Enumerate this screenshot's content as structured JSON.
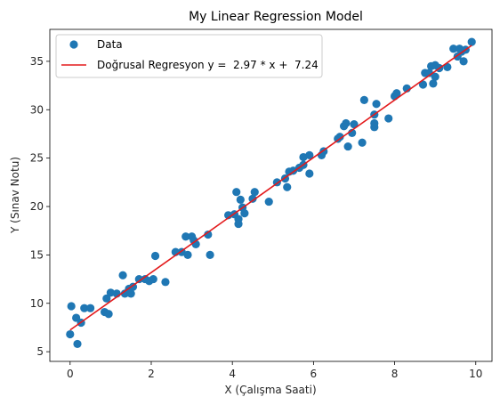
{
  "chart_data": {
    "type": "scatter",
    "title": "My Linear Regression Model",
    "xlabel": "X (Çalışma Saati)",
    "ylabel": "Y (Sınav Notu)",
    "xlim": [
      -0.5,
      10.4
    ],
    "ylim": [
      4.0,
      38.3
    ],
    "xticks": [
      0,
      2,
      4,
      6,
      8,
      10
    ],
    "yticks": [
      5,
      10,
      15,
      20,
      25,
      30,
      35
    ],
    "grid": false,
    "legend_placement": "top-left",
    "series": [
      {
        "name": "Data",
        "kind": "scatter",
        "color": "#1f77b4",
        "points": [
          [
            0.0,
            6.8
          ],
          [
            0.03,
            9.7
          ],
          [
            0.15,
            8.5
          ],
          [
            0.18,
            5.8
          ],
          [
            0.27,
            8.0
          ],
          [
            0.35,
            9.5
          ],
          [
            0.5,
            9.5
          ],
          [
            0.85,
            9.1
          ],
          [
            0.9,
            10.5
          ],
          [
            0.95,
            8.9
          ],
          [
            1.0,
            11.1
          ],
          [
            1.15,
            11.0
          ],
          [
            1.3,
            12.9
          ],
          [
            1.35,
            11.0
          ],
          [
            1.45,
            11.5
          ],
          [
            1.5,
            11.0
          ],
          [
            1.55,
            11.7
          ],
          [
            1.7,
            12.5
          ],
          [
            1.85,
            12.5
          ],
          [
            1.95,
            12.3
          ],
          [
            2.05,
            12.5
          ],
          [
            2.1,
            14.9
          ],
          [
            2.35,
            12.2
          ],
          [
            2.6,
            15.3
          ],
          [
            2.75,
            15.3
          ],
          [
            2.85,
            16.9
          ],
          [
            2.9,
            15.0
          ],
          [
            3.0,
            16.9
          ],
          [
            3.05,
            16.5
          ],
          [
            3.1,
            16.1
          ],
          [
            3.4,
            17.1
          ],
          [
            3.45,
            15.0
          ],
          [
            3.9,
            19.1
          ],
          [
            4.05,
            19.2
          ],
          [
            4.1,
            21.5
          ],
          [
            4.15,
            18.2
          ],
          [
            4.15,
            18.7
          ],
          [
            4.2,
            20.7
          ],
          [
            4.25,
            19.9
          ],
          [
            4.3,
            19.3
          ],
          [
            4.5,
            20.8
          ],
          [
            4.55,
            21.5
          ],
          [
            4.9,
            20.5
          ],
          [
            5.1,
            22.5
          ],
          [
            5.3,
            22.9
          ],
          [
            5.35,
            22.0
          ],
          [
            5.4,
            23.6
          ],
          [
            5.5,
            23.7
          ],
          [
            5.65,
            24.0
          ],
          [
            5.75,
            24.3
          ],
          [
            5.75,
            25.1
          ],
          [
            5.9,
            25.3
          ],
          [
            5.9,
            23.4
          ],
          [
            6.2,
            25.3
          ],
          [
            6.25,
            25.7
          ],
          [
            6.6,
            27.0
          ],
          [
            6.65,
            27.2
          ],
          [
            6.75,
            28.3
          ],
          [
            6.8,
            28.6
          ],
          [
            6.85,
            26.2
          ],
          [
            6.95,
            27.6
          ],
          [
            7.0,
            28.5
          ],
          [
            7.2,
            26.6
          ],
          [
            7.25,
            31.0
          ],
          [
            7.5,
            28.2
          ],
          [
            7.5,
            28.6
          ],
          [
            7.5,
            29.5
          ],
          [
            7.55,
            30.6
          ],
          [
            7.85,
            29.1
          ],
          [
            8.0,
            31.4
          ],
          [
            8.05,
            31.7
          ],
          [
            8.3,
            32.2
          ],
          [
            8.7,
            32.6
          ],
          [
            8.75,
            33.8
          ],
          [
            8.85,
            33.8
          ],
          [
            8.9,
            34.5
          ],
          [
            8.95,
            32.7
          ],
          [
            9.0,
            33.4
          ],
          [
            9.0,
            34.6
          ],
          [
            9.1,
            34.3
          ],
          [
            9.3,
            34.4
          ],
          [
            9.45,
            36.3
          ],
          [
            9.55,
            35.5
          ],
          [
            9.6,
            36.3
          ],
          [
            9.65,
            36.0
          ],
          [
            9.7,
            35.0
          ],
          [
            9.75,
            36.2
          ],
          [
            9.9,
            37.0
          ]
        ]
      },
      {
        "name": "Doğrusal Regresyon y =  2.97 * x +  7.24",
        "kind": "line",
        "color": "#e31a1c",
        "slope": 2.97,
        "intercept": 7.24,
        "x_range": [
          0.0,
          9.9
        ]
      }
    ]
  }
}
